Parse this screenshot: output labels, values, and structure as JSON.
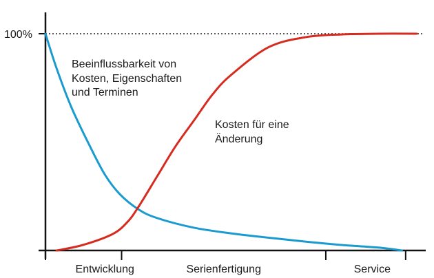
{
  "chart_data": {
    "type": "line",
    "title": "",
    "xlabel": "",
    "ylabel": "",
    "y_tick_labels": [
      "100%"
    ],
    "ylim": [
      0,
      100
    ],
    "xlim": [
      0,
      100
    ],
    "reference_line": {
      "y": 100,
      "style": "dotted"
    },
    "x_phase_labels": [
      {
        "label": "Entwicklung",
        "x": 16
      },
      {
        "label": "Serienfertigung",
        "x": 48
      },
      {
        "label": "Service",
        "x": 88
      }
    ],
    "x_phase_ticks": [
      0,
      20.5,
      75.5,
      97
    ],
    "series": [
      {
        "name": "Beeinflussbarkeit von Kosten, Eigenschaften und Terminen",
        "label_lines": [
          "Beeinflussbarkeit von",
          "Kosten, Eigenschaften",
          "und Terminen"
        ],
        "color": "#1a9bd0",
        "x": [
          0,
          3,
          7,
          12,
          16,
          20,
          25,
          30,
          40,
          50,
          60,
          70,
          80,
          90,
          96
        ],
        "y": [
          100,
          84,
          66,
          48,
          35,
          26,
          19,
          15,
          10.5,
          7.9,
          5.9,
          4.1,
          2.5,
          1.3,
          0
        ]
      },
      {
        "name": "Kosten für eine Änderung",
        "label_lines": [
          "Kosten für eine",
          "Änderung"
        ],
        "color": "#d62b1f",
        "x": [
          3,
          10,
          18,
          22,
          25,
          30,
          35,
          40,
          45,
          50,
          60,
          70,
          80,
          90,
          100
        ],
        "y": [
          0,
          2.5,
          7.5,
          13,
          20,
          34,
          48,
          60,
          72,
          81,
          93.7,
          98.4,
          99.7,
          100,
          100
        ]
      }
    ]
  }
}
